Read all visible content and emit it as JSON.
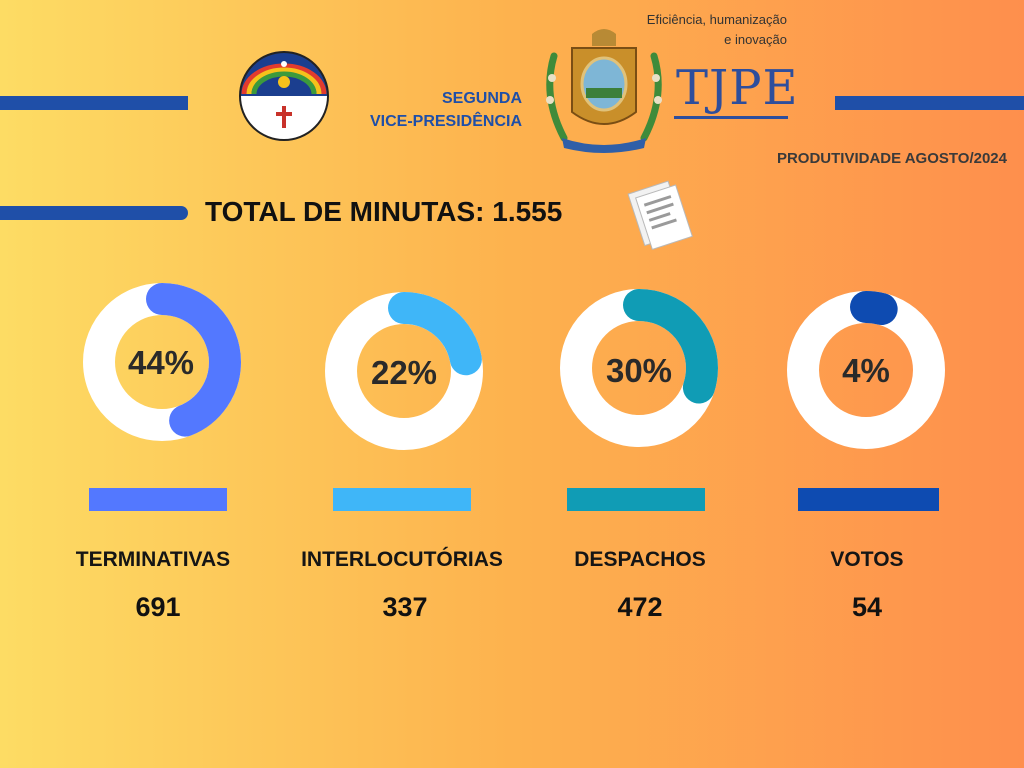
{
  "header": {
    "vice_presidency_line1": "SEGUNDA",
    "vice_presidency_line2": "VICE-PRESIDÊNCIA",
    "slogan_line1": "Eficiência, humanização",
    "slogan_line2": "e inovação",
    "tjpe_logo_text": "TJPE",
    "productivity_title": "PRODUTIVIDADE AGOSTO/2024"
  },
  "total": {
    "label": "TOTAL DE MINUTAS: 1.555"
  },
  "icons": {
    "state_flag": "pernambuco-flag-icon",
    "coat_of_arms": "coat-of-arms-icon",
    "documents": "documents-icon"
  },
  "colors": {
    "terminativas": "#5378FF",
    "interlocutorias": "#3FB6F8",
    "despachos": "#109CB5",
    "votos": "#0E4BB1",
    "lines": "#1F4FA8"
  },
  "chart_data": {
    "type": "donut",
    "total": 1555,
    "categories": [
      "TERMINATIVAS",
      "INTERLOCUTÓRIAS",
      "DESPACHOS",
      "VOTOS"
    ],
    "values": [
      691,
      337,
      472,
      54
    ],
    "percent_labels": [
      "44%",
      "22%",
      "30%",
      "4%"
    ],
    "percents": [
      44,
      22,
      30,
      4
    ],
    "value_labels": [
      "691",
      "337",
      "472",
      "54"
    ]
  }
}
